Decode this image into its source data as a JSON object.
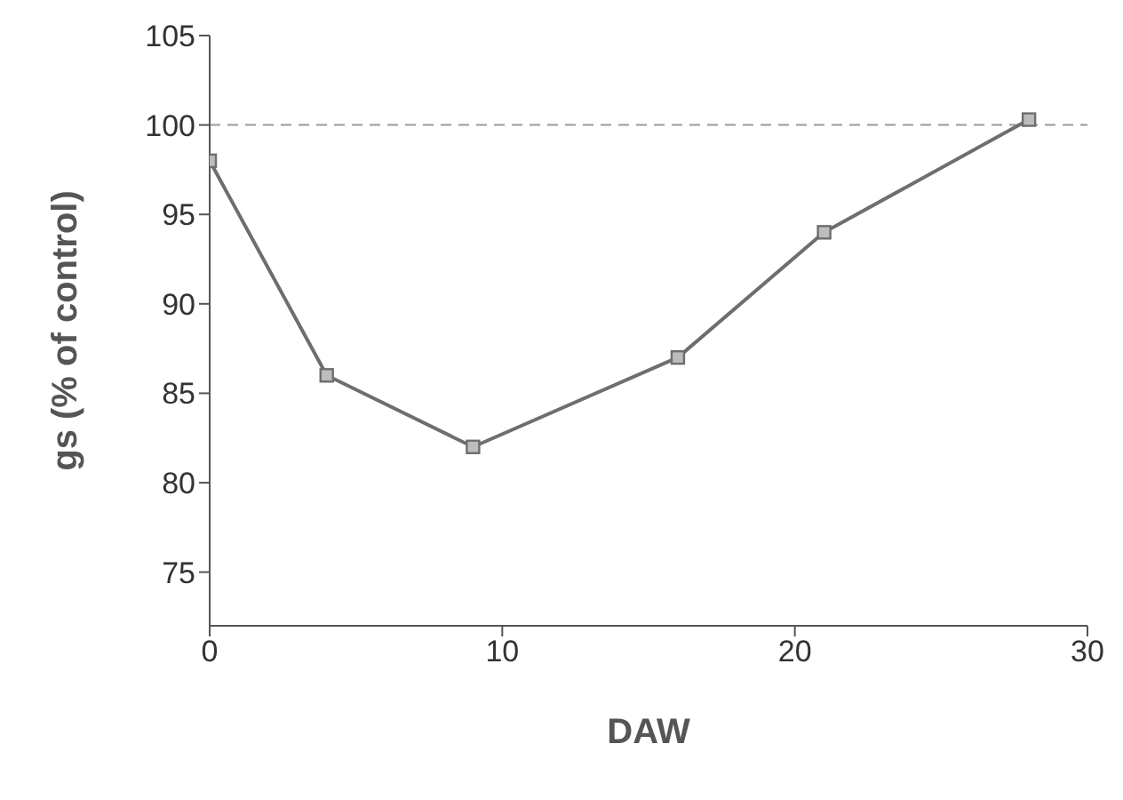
{
  "chart_data": {
    "type": "line",
    "xlabel": "DAW",
    "ylabel": "gs (% of control)",
    "x": [
      0,
      4,
      9,
      16,
      21,
      28
    ],
    "series": [
      {
        "color": "#6e6e6e",
        "values": [
          98,
          86,
          82,
          87,
          94,
          100.3
        ]
      }
    ],
    "xlim": [
      0,
      30
    ],
    "xticks": [
      0,
      10,
      20,
      30
    ],
    "ylim": [
      72,
      105
    ],
    "yticks": [
      75,
      80,
      85,
      90,
      95,
      100,
      105
    ],
    "ref_lines": [
      {
        "axis": "y",
        "value": 100,
        "color": "#9a9a9a",
        "line_style": "dashed"
      }
    ],
    "marker": "square",
    "line_style": "solid",
    "grid": false,
    "legend": false
  }
}
